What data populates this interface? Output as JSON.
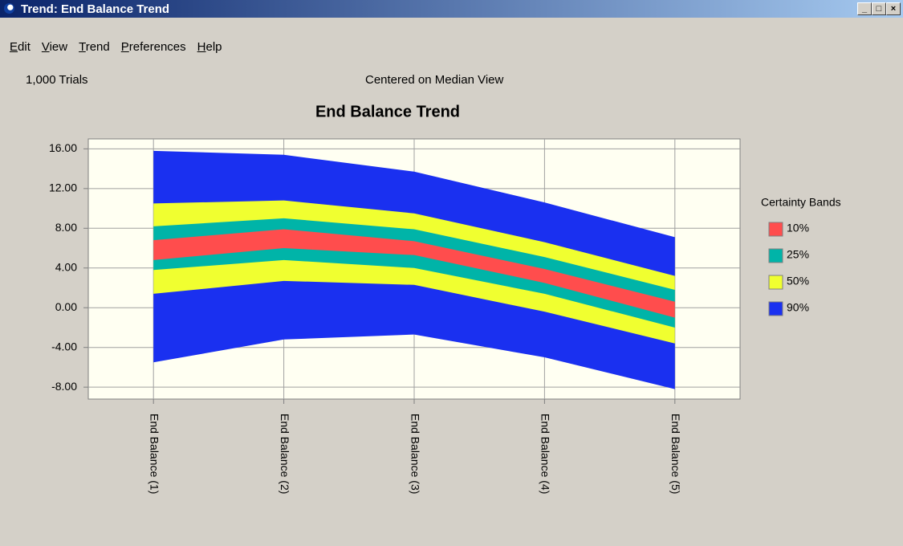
{
  "window": {
    "title": "Trend: End Balance Trend"
  },
  "menu": [
    "Edit",
    "View",
    "Trend",
    "Preferences",
    "Help"
  ],
  "info": {
    "trials": "1,000 Trials",
    "view": "Centered on Median View"
  },
  "chart_data": {
    "type": "band",
    "title": "End Balance Trend",
    "categories": [
      "End Balance (1)",
      "End Balance (2)",
      "End Balance (3)",
      "End Balance (4)",
      "End Balance (5)"
    ],
    "ylim": [
      -9.2,
      17
    ],
    "yticks": [
      {
        "value": 16,
        "label": "16.00"
      },
      {
        "value": 12,
        "label": "12.00"
      },
      {
        "value": 8,
        "label": "8.00"
      },
      {
        "value": 4,
        "label": "4.00"
      },
      {
        "value": 0,
        "label": "0.00"
      },
      {
        "value": -4,
        "label": "-4.00"
      },
      {
        "value": -8,
        "label": "-8.00"
      }
    ],
    "grid": true,
    "legend_title": "Certainty Bands",
    "series": [
      {
        "name": "10%",
        "color": "#ff4d4d",
        "low": [
          4.8,
          6.0,
          5.3,
          2.5,
          -1.0
        ],
        "high": [
          6.8,
          7.9,
          6.7,
          3.9,
          0.6
        ]
      },
      {
        "name": "25%",
        "color": "#00b4a8",
        "low": [
          3.8,
          4.8,
          4.0,
          1.4,
          -2.0
        ],
        "high": [
          8.2,
          9.0,
          7.9,
          5.1,
          1.8
        ]
      },
      {
        "name": "50%",
        "color": "#f0ff30",
        "low": [
          1.4,
          2.7,
          2.3,
          -0.4,
          -3.6
        ],
        "high": [
          10.5,
          10.8,
          9.5,
          6.6,
          3.2
        ]
      },
      {
        "name": "90%",
        "color": "#1a30f0",
        "low": [
          -5.5,
          -3.2,
          -2.7,
          -5.0,
          -8.2
        ],
        "high": [
          15.8,
          15.4,
          13.7,
          10.6,
          7.1
        ]
      }
    ]
  }
}
